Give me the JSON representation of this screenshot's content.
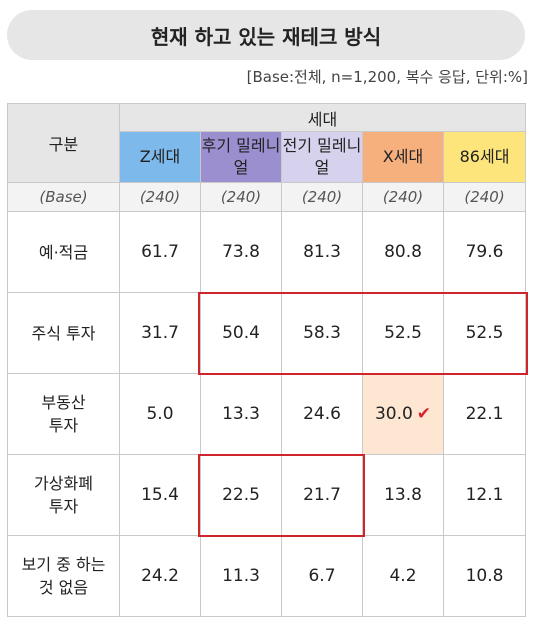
{
  "title": "현재 하고 있는 재테크 방식",
  "subtitle": "[Base:전체, n=1,200, 복수 응답, 단위:%]",
  "chart_data": {
    "type": "table",
    "row_header": "구분",
    "group_header": "세대",
    "columns": [
      "Z세대",
      "후기 밀레니얼",
      "전기 밀레니얼",
      "X세대",
      "86세대"
    ],
    "base_label": "(Base)",
    "base_values": [
      "(240)",
      "(240)",
      "(240)",
      "(240)",
      "(240)"
    ],
    "rows": [
      {
        "label": "예·적금",
        "values": [
          61.7,
          73.8,
          81.3,
          80.8,
          79.6
        ]
      },
      {
        "label": "주식 투자",
        "values": [
          31.7,
          50.4,
          58.3,
          52.5,
          52.5
        ]
      },
      {
        "label": "부동산 투자",
        "values": [
          5.0,
          13.3,
          24.6,
          30.0,
          22.1
        ]
      },
      {
        "label": "가상화폐 투자",
        "values": [
          15.4,
          22.5,
          21.7,
          13.8,
          12.1
        ]
      },
      {
        "label": "보기 중 하는 것 없음",
        "values": [
          24.2,
          11.3,
          6.7,
          4.2,
          10.8
        ]
      }
    ],
    "highlights": [
      {
        "type": "box",
        "row": "주식 투자",
        "columns": [
          "후기 밀레니얼",
          "전기 밀레니얼",
          "X세대",
          "86세대"
        ]
      },
      {
        "type": "box",
        "row": "가상화폐 투자",
        "columns": [
          "후기 밀레니얼",
          "전기 밀레니얼"
        ]
      },
      {
        "type": "cell",
        "row": "부동산 투자",
        "column": "X세대",
        "mark": "check"
      }
    ],
    "colors": {
      "z": "#7db9ea",
      "late_millennial": "#9b8fcf",
      "early_millennial": "#d6d1ec",
      "x": "#f6b07e",
      "gen86": "#fde57c",
      "highlight_box": "#d0242c",
      "highlight_cell": "#fde6d2"
    }
  }
}
